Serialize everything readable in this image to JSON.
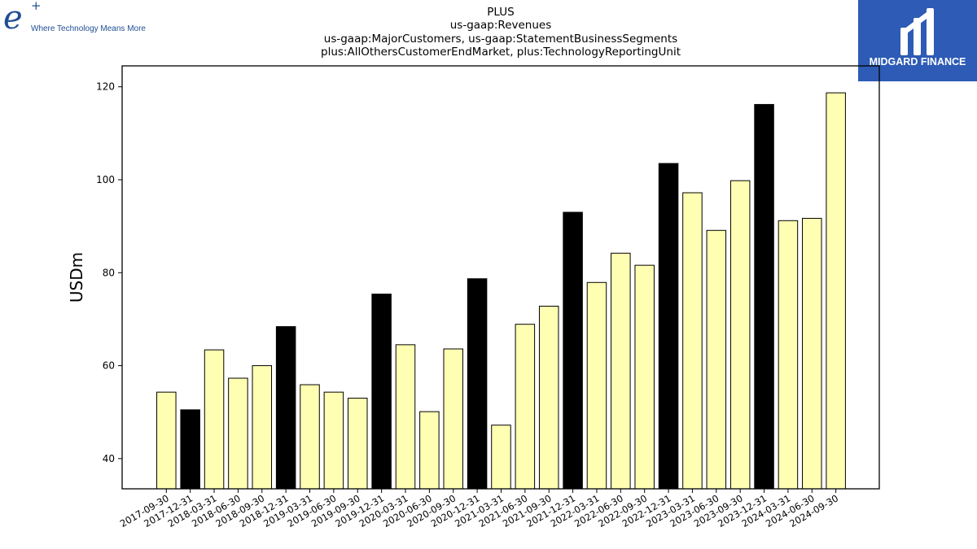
{
  "branding": {
    "left_logo_mark": "e",
    "left_logo_plus": "+",
    "left_logo_tagline": "Where Technology Means More",
    "right_logo_text": "MIDGARD FINANCE",
    "colors": {
      "left_logo": "#1f4e94",
      "right_logo_bg": "#2d5bb5"
    }
  },
  "chart_data": {
    "type": "bar",
    "title_lines": [
      "PLUS",
      "us-gaap:Revenues",
      "us-gaap:MajorCustomers, us-gaap:StatementBusinessSegments",
      "plus:AllOthersCustomerEndMarket, plus:TechnologyReportingUnit"
    ],
    "xlabel": "",
    "ylabel": "USDm",
    "ylim": [
      33.5,
      124.5
    ],
    "yticks": [
      40,
      60,
      80,
      100,
      120
    ],
    "grid": false,
    "legend": "none",
    "colors": {
      "regular": "#ffffb3",
      "year_end": "#000000",
      "edge": "#000000"
    },
    "categories": [
      "2017-09-30",
      "2017-12-31",
      "2018-03-31",
      "2018-06-30",
      "2018-09-30",
      "2018-12-31",
      "2019-03-31",
      "2019-06-30",
      "2019-09-30",
      "2019-12-31",
      "2020-03-31",
      "2020-06-30",
      "2020-09-30",
      "2020-12-31",
      "2021-03-31",
      "2021-06-30",
      "2021-09-30",
      "2021-12-31",
      "2022-03-31",
      "2022-06-30",
      "2022-09-30",
      "2022-12-31",
      "2023-03-31",
      "2023-06-30",
      "2023-09-30",
      "2023-12-31",
      "2024-03-31",
      "2024-06-30",
      "2024-09-30"
    ],
    "values": [
      54.3,
      50.5,
      63.4,
      57.3,
      60.0,
      68.4,
      55.9,
      54.3,
      53.0,
      75.4,
      64.5,
      50.1,
      63.6,
      78.7,
      47.2,
      68.9,
      72.8,
      93.0,
      77.9,
      84.2,
      81.6,
      103.5,
      97.2,
      89.1,
      99.8,
      116.2,
      91.2,
      91.7,
      118.7
    ],
    "highlight": [
      false,
      true,
      false,
      false,
      false,
      true,
      false,
      false,
      false,
      true,
      false,
      false,
      false,
      true,
      false,
      false,
      false,
      true,
      false,
      false,
      false,
      true,
      false,
      false,
      false,
      true,
      false,
      false,
      false
    ]
  }
}
